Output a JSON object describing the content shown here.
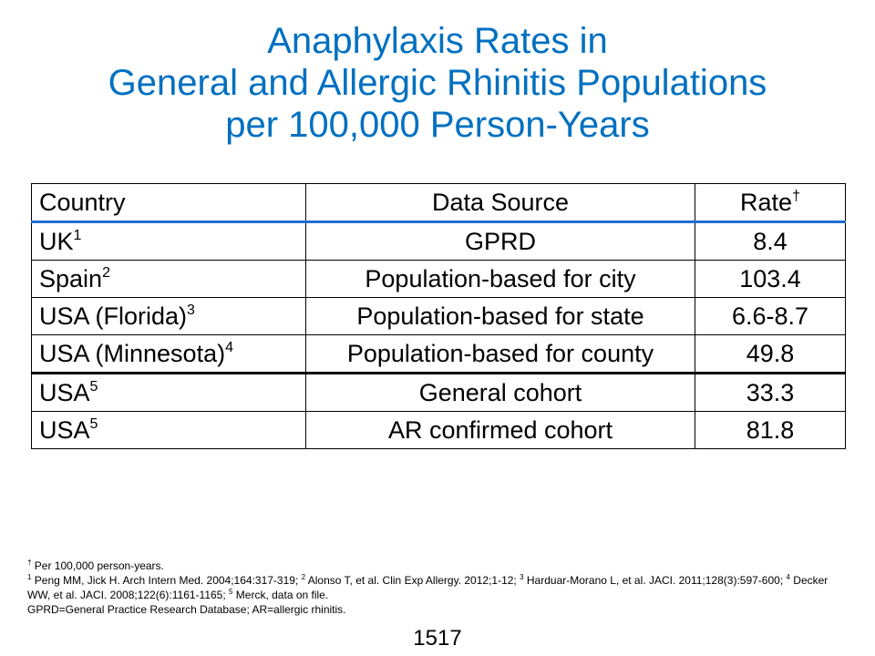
{
  "title": {
    "line1": "Anaphylaxis Rates in",
    "line2": "General and Allergic Rhinitis Populations",
    "line3": "per 100,000 Person-Years"
  },
  "table": {
    "headers": {
      "country": "Country",
      "source": "Data Source",
      "rate": "Rate",
      "rate_mark": "†"
    },
    "rows": [
      {
        "country": "UK",
        "ref": "1",
        "source": "GPRD",
        "rate": "8.4"
      },
      {
        "country": "Spain",
        "ref": "2",
        "source": "Population-based for city",
        "rate": "103.4"
      },
      {
        "country": "USA (Florida)",
        "ref": "3",
        "source": "Population-based for state",
        "rate": "6.6-8.7"
      },
      {
        "country": "USA (Minnesota)",
        "ref": "4",
        "source": "Population-based for county",
        "rate": "49.8"
      },
      {
        "country": "USA",
        "ref": "5",
        "source": "General cohort",
        "rate": "33.3"
      },
      {
        "country": "USA",
        "ref": "5",
        "source": "AR confirmed cohort",
        "rate": "81.8"
      }
    ]
  },
  "footnotes": {
    "dagger_mark": "†",
    "dagger_text": " Per 100,000 person-years.",
    "ref1_mark": "1",
    "ref1_text": " Peng MM, Jick H.  Arch Intern Med. 2004;164:317-319; ",
    "ref2_mark": "2",
    "ref2_text": " Alonso T, et al. Clin Exp Allergy. 2012;1-12; ",
    "ref3_mark": "3",
    "ref3_text": " Harduar-Morano L, et al. JACI. 2011;128(3):597-600; ",
    "ref4_mark": "4",
    "ref4_text": " Decker WW, et al. JACI. 2008;122(6):1161-1165; ",
    "ref5_mark": "5",
    "ref5_text": " Merck, data on file.",
    "abbrev": "GPRD=General Practice Research Database; AR=allergic rhinitis."
  },
  "slide_number": "1517"
}
